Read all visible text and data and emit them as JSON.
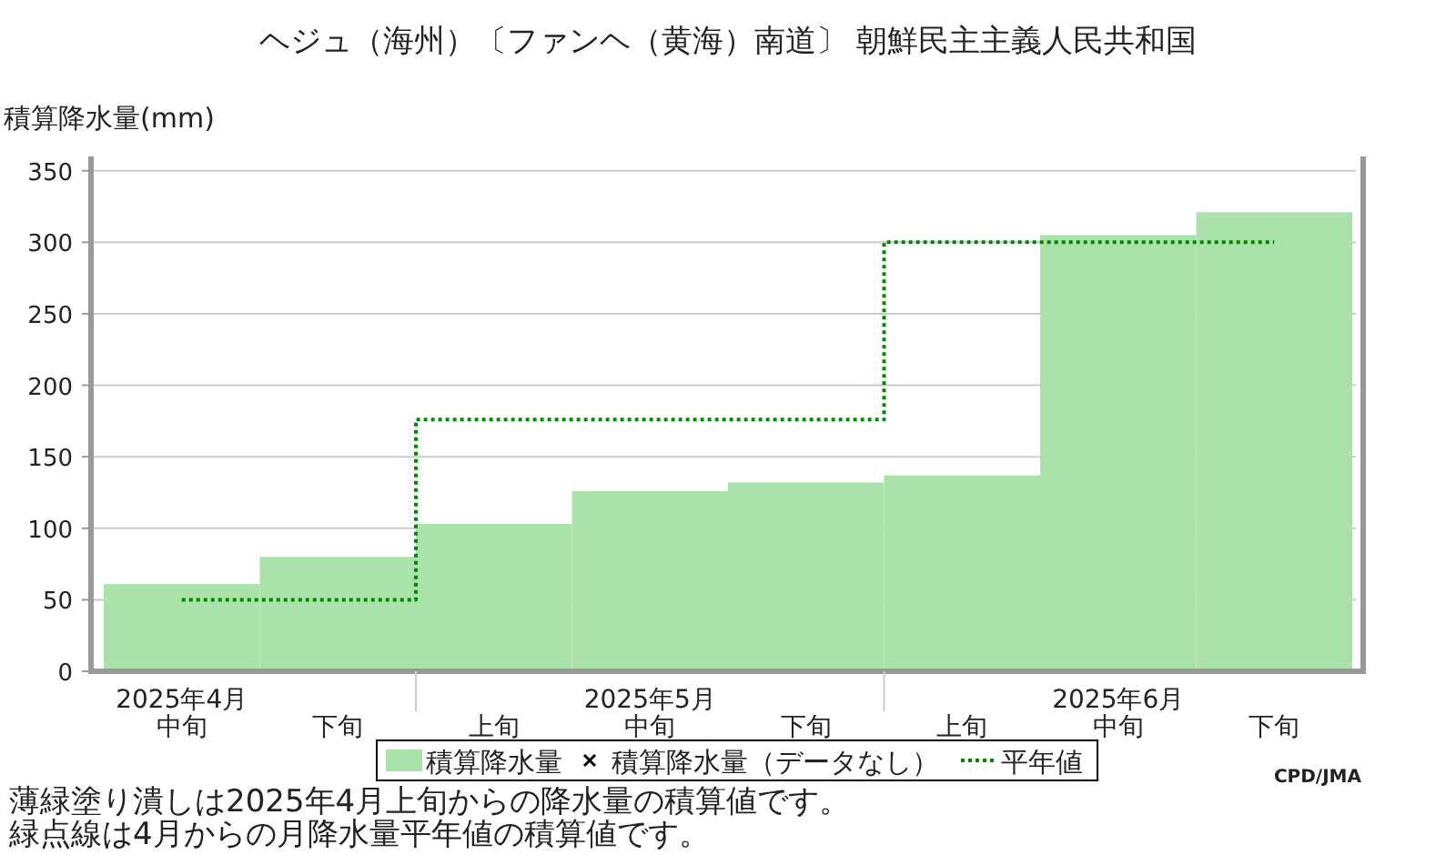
{
  "chart_data": {
    "type": "bar",
    "title": "ヘジュ（海州）〔ファンヘ（黄海）南道〕 朝鮮民主主義人民共和国",
    "ylabel": "積算降水量(mm)",
    "categories": [
      "2025年4月中旬",
      "下旬",
      "上旬",
      "2025年5月中旬",
      "下旬",
      "上旬",
      "2025年6月中旬",
      "下旬"
    ],
    "series": [
      {
        "name": "積算降水量",
        "color": "#aae3aa",
        "values": [
          61,
          80,
          103,
          126,
          132,
          137,
          305,
          321
        ]
      },
      {
        "name": "積算降水量（データなし）",
        "type": "scatter",
        "marker": "cross",
        "color": "#000000",
        "values": [
          null,
          null,
          null,
          null,
          null,
          null,
          null,
          null
        ]
      },
      {
        "name": "平年値",
        "type": "step",
        "color": "#008800",
        "line_style": "dotted",
        "values": [
          50,
          50,
          176,
          176,
          176,
          300,
          300,
          300
        ]
      }
    ],
    "ylim": [
      0,
      360
    ],
    "yticks": [
      0,
      50,
      100,
      150,
      200,
      250,
      300,
      350
    ],
    "grid": "y",
    "legend": "bottom",
    "annotations": [
      "薄緑塗り潰しは2025年4月上旬からの降水量の積算値です。",
      "緑点線は4月からの月降水量平年値の積算値です。",
      "CPD/JMA"
    ]
  }
}
